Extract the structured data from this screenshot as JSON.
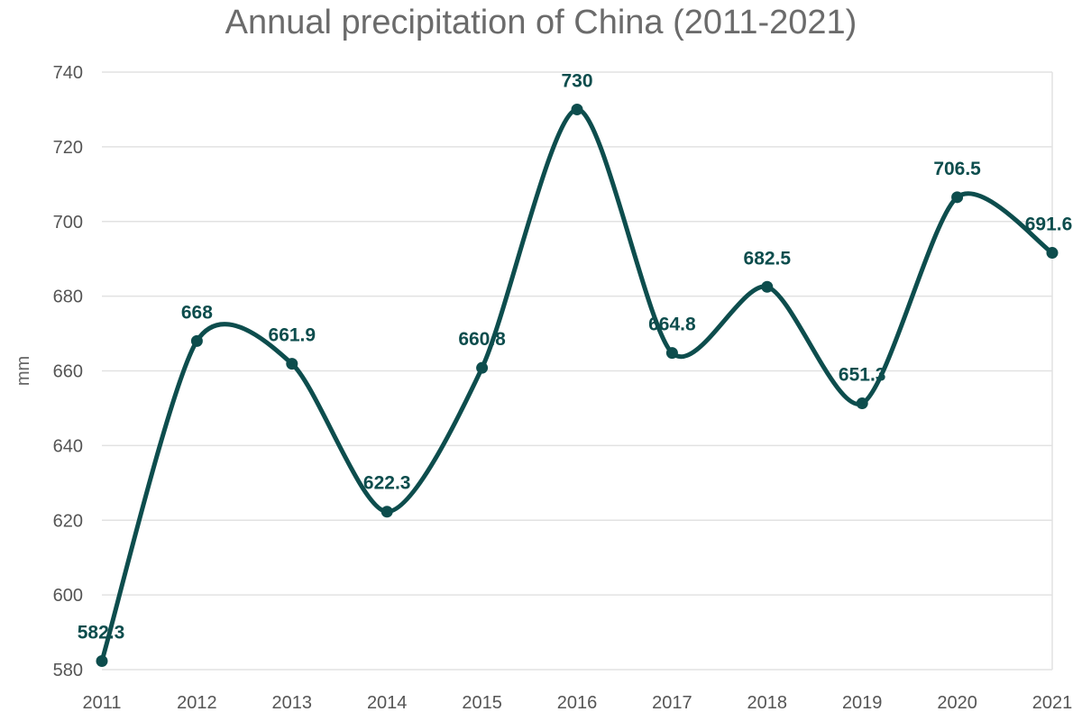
{
  "chart_data": {
    "type": "line",
    "title": "Annual precipitation of China (2011-2021)",
    "xlabel": "",
    "ylabel": "mm",
    "categories": [
      "2011",
      "2012",
      "2013",
      "2014",
      "2015",
      "2016",
      "2017",
      "2018",
      "2019",
      "2020",
      "2021"
    ],
    "series": [
      {
        "values": [
          582.3,
          668,
          661.9,
          622.3,
          660.8,
          730,
          664.8,
          682.5,
          651.3,
          706.5,
          691.6
        ]
      }
    ],
    "ylim": [
      580,
      740
    ],
    "yticks": [
      580,
      600,
      620,
      640,
      660,
      680,
      700,
      720,
      740
    ],
    "grid": true,
    "smooth": true,
    "data_labels": true,
    "colors": {
      "series": "#0d4d4d",
      "grid": "#e2e2e2",
      "text": "#555555"
    }
  }
}
